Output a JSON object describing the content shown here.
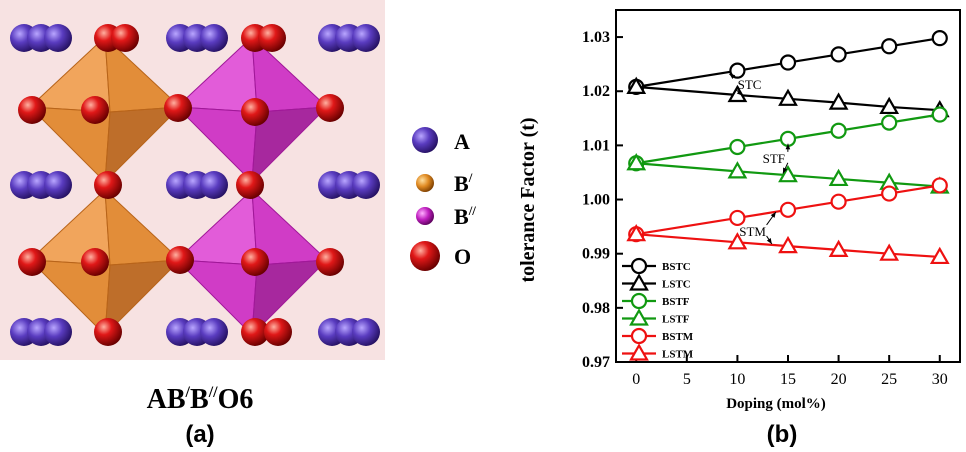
{
  "panel_a": {
    "formula_parts": [
      "AB",
      "/",
      "B",
      "//",
      "O6"
    ],
    "label": "(a)",
    "legend": [
      {
        "symbol": "A",
        "sup": "",
        "color": "#5535b0",
        "icon": "purple-sphere-icon"
      },
      {
        "symbol": "B",
        "sup": "/",
        "color": "#d9811c",
        "icon": "orange-sphere-icon"
      },
      {
        "symbol": "B",
        "sup": "//",
        "color": "#c020c0",
        "icon": "magenta-sphere-icon"
      },
      {
        "symbol": "O",
        "sup": "",
        "color": "#d81010",
        "icon": "red-sphere-icon"
      }
    ],
    "colors": {
      "background": "#f7e2e2",
      "octahedron_b1": "#e0852a",
      "octahedron_b2": "#cc2ec3",
      "atom_a": "#5535b0",
      "atom_o": "#d81010"
    }
  },
  "panel_b": {
    "label": "(b)"
  },
  "chart_data": {
    "type": "line",
    "xlabel": "Doping (mol%)",
    "ylabel": "tolerance Factor (t)",
    "xlim": [
      -2,
      32
    ],
    "ylim": [
      0.97,
      1.035
    ],
    "xticks": [
      0,
      5,
      10,
      15,
      20,
      25,
      30
    ],
    "yticks": [
      0.97,
      0.98,
      0.99,
      1.0,
      1.01,
      1.02,
      1.03
    ],
    "ytick_labels": [
      "0.97",
      "0.98",
      "0.99",
      "1.00",
      "1.01",
      "1.02",
      "1.03"
    ],
    "x": [
      0,
      10,
      15,
      20,
      25,
      30
    ],
    "series": [
      {
        "name": "BSTC",
        "color": "#000000",
        "marker": "circle",
        "values": [
          1.0208,
          1.0238,
          1.0253,
          1.0268,
          1.0283,
          1.0298
        ]
      },
      {
        "name": "LSTC",
        "color": "#000000",
        "marker": "triangle",
        "values": [
          1.0208,
          1.0193,
          1.0186,
          1.0179,
          1.0171,
          1.0165
        ]
      },
      {
        "name": "BSTF",
        "color": "#119911",
        "marker": "circle",
        "values": [
          1.0067,
          1.0097,
          1.0112,
          1.0127,
          1.0142,
          1.0157
        ]
      },
      {
        "name": "LSTF",
        "color": "#119911",
        "marker": "triangle",
        "values": [
          1.0067,
          1.0052,
          1.0045,
          1.0038,
          1.0031,
          1.0024
        ]
      },
      {
        "name": "BSTM",
        "color": "#ee1111",
        "marker": "circle",
        "values": [
          0.9936,
          0.9966,
          0.9981,
          0.9996,
          1.0011,
          1.0026
        ]
      },
      {
        "name": "LSTM",
        "color": "#ee1111",
        "marker": "triangle",
        "values": [
          0.9936,
          0.9921,
          0.9914,
          0.9907,
          0.99,
          0.9894
        ]
      }
    ],
    "annotations": [
      {
        "text": "STC",
        "x": 11.2,
        "y": 1.0213,
        "arrow_to": [
          [
            9.2,
            1.0232
          ],
          [
            10.5,
            1.0192
          ]
        ]
      },
      {
        "text": "STF",
        "x": 13.6,
        "y": 1.0077,
        "arrow_to": [
          [
            15.0,
            1.0103
          ],
          [
            14.5,
            1.0048
          ]
        ]
      },
      {
        "text": "STM",
        "x": 11.5,
        "y": 0.9942,
        "arrow_to": [
          [
            13.8,
            0.9977
          ],
          [
            13.4,
            0.9918
          ]
        ]
      }
    ],
    "legend_position": "bottom-left"
  }
}
